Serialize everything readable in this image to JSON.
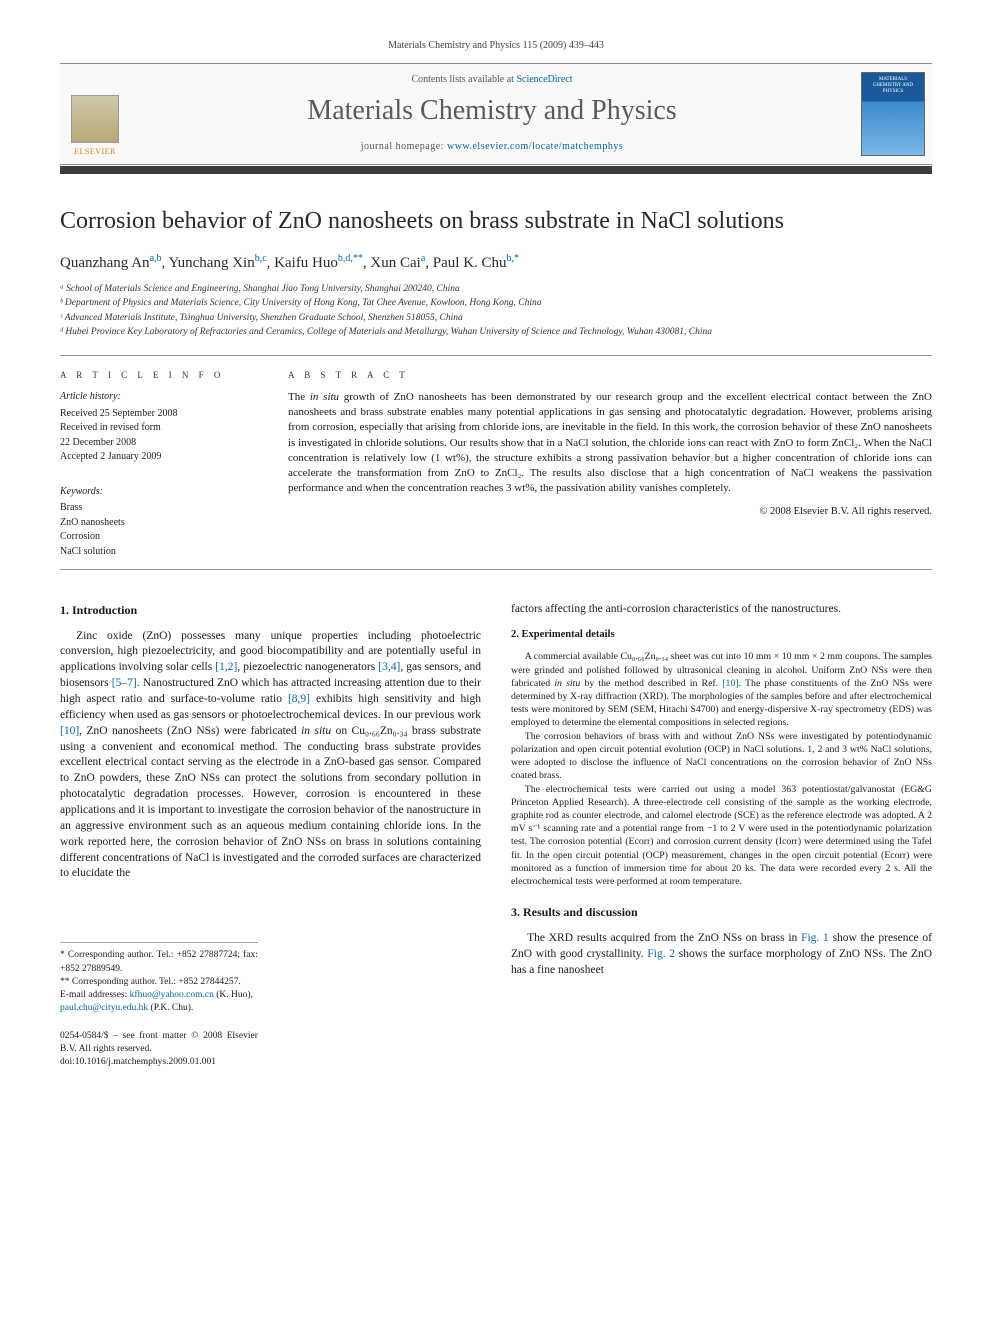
{
  "page_header": "Materials Chemistry and Physics 115 (2009) 439–443",
  "banner": {
    "contents_prefix": "Contents lists available at ",
    "contents_link": "ScienceDirect",
    "journal_title": "Materials Chemistry and Physics",
    "homepage_prefix": "journal homepage: ",
    "homepage_link": "www.elsevier.com/locate/matchemphys",
    "publisher_label": "ELSEVIER"
  },
  "title": "Corrosion behavior of ZnO nanosheets on brass substrate in NaCl solutions",
  "authors_html": "Quanzhang An<sup class=\"aff-link\">a,b</sup>, Yunchang Xin<sup class=\"aff-link\">b,c</sup>, Kaifu Huo<sup class=\"aff-link\">b,d,**</sup>, Xun Cai<sup class=\"aff-link\">a</sup>, Paul K. Chu<sup class=\"aff-link\">b,*</sup>",
  "affiliations": [
    "ᵃ School of Materials Science and Engineering, Shanghai Jiao Tong University, Shanghai 200240, China",
    "ᵇ Department of Physics and Materials Science, City University of Hong Kong, Tat Chee Avenue, Kowloon, Hong Kong, China",
    "ᶜ Advanced Materials Institute, Tsinghua University, Shenzhen Graduate School, Shenzhen 518055, China",
    "ᵈ Hubei Province Key Laboratory of Refractories and Ceramics, College of Materials and Metallurgy, Wuhan University of Science and Technology, Wuhan 430081, China"
  ],
  "info": {
    "heading": "A R T I C L E   I N F O",
    "history_label": "Article history:",
    "history": [
      "Received 25 September 2008",
      "Received in revised form",
      "22 December 2008",
      "Accepted 2 January 2009"
    ],
    "keywords_label": "Keywords:",
    "keywords": [
      "Brass",
      "ZnO nanosheets",
      "Corrosion",
      "NaCl solution"
    ]
  },
  "abstract": {
    "heading": "A B S T R A C T",
    "text": "The in situ growth of ZnO nanosheets has been demonstrated by our research group and the excellent electrical contact between the ZnO nanosheets and brass substrate enables many potential applications in gas sensing and photocatalytic degradation. However, problems arising from corrosion, especially that arising from chloride ions, are inevitable in the field. In this work, the corrosion behavior of these ZnO nanosheets is investigated in chloride solutions. Our results show that in a NaCl solution, the chloride ions can react with ZnO to form ZnCl₂. When the NaCl concentration is relatively low (1 wt%), the structure exhibits a strong passivation behavior but a higher concentration of chloride ions can accelerate the transformation from ZnO to ZnCl₂. The results also disclose that a high concentration of NaCl weakens the passivation performance and when the concentration reaches 3 wt%, the passivation ability vanishes completely.",
    "copyright": "© 2008 Elsevier B.V. All rights reserved."
  },
  "sections": {
    "intro_heading": "1.  Introduction",
    "intro_p1": "Zinc oxide (ZnO) possesses many unique properties including photoelectric conversion, high piezoelectricity, and good biocompatibility and are potentially useful in applications involving solar cells [1,2], piezoelectric nanogenerators [3,4], gas sensors, and biosensors [5–7]. Nanostructured ZnO which has attracted increasing attention due to their high aspect ratio and surface-to-volume ratio [8,9] exhibits high sensitivity and high efficiency when used as gas sensors or photoelectrochemical devices. In our previous work [10], ZnO nanosheets (ZnO NSs) were fabricated in situ on Cu₀.₆₆Zn₀.₃₄ brass substrate using a convenient and economical method. The conducting brass substrate provides excellent electrical contact serving as the electrode in a ZnO-based gas sensor. Compared to ZnO powders, these ZnO NSs can protect the solutions from secondary pollution in photocatalytic degradation processes. However, corrosion is encountered in these applications and it is important to investigate the corrosion behavior of the nanostructure in an aggressive environment such as an aqueous medium containing chloride ions. In the work reported here, the corrosion behavior of ZnO NSs on brass in solutions containing different concentrations of NaCl is investigated and the corroded surfaces are characterized to elucidate the",
    "intro_p1_cont": "factors affecting the anti-corrosion characteristics of the nanostructures.",
    "exp_heading": "2.  Experimental details",
    "exp_p1": "A commercial available Cu₀.₆₆Zn₀.₃₄ sheet was cut into 10 mm × 10 mm × 2 mm coupons. The samples were grinded and polished followed by ultrasonical cleaning in alcohol. Uniform ZnO NSs were then fabricated in situ by the method described in Ref. [10]. The phase constituents of the ZnO NSs were determined by X-ray diffraction (XRD). The morphologies of the samples before and after electrochemical tests were monitored by SEM (SEM, Hitachi S4700) and energy-dispersive X-ray spectrometry (EDS) was employed to determine the elemental compositions in selected regions.",
    "exp_p2": "The corrosion behaviors of brass with and without ZnO NSs were investigated by potentiodynamic polarization and open circuit potential evolution (OCP) in NaCl solutions. 1, 2 and 3 wt% NaCl solutions, were adopted to disclose the influence of NaCl concentrations on the corrosion behavior of ZnO NSs coated brass.",
    "exp_p3": "The electrochemical tests were carried out using a model 363 potentiostat/galvanostat (EG&G Princeton Applied Research). A three-electrode cell consisting of the sample as the working electrode, graphite rod as counter electrode, and calomel electrode (SCE) as the reference electrode was adopted. A 2 mV s⁻¹ scanning rate and a potential range from −1 to 2 V were used in the potentiodynamic polarization test. The corrosion potential (Ecorr) and corrosion current density (Icorr) were determined using the Tafel fit. In the open circuit potential (OCP) measurement, changes in the open circuit potential (Ecorr) were monitored as a function of immersion time for about 20 ks. The data were recorded every 2 s. All the electrochemical tests were performed at room temperature.",
    "results_heading": "3.  Results and discussion",
    "results_p1": "The XRD results acquired from the ZnO NSs on brass in Fig. 1 show the presence of ZnO with good crystallinity. Fig. 2 shows the surface morphology of ZnO NSs. The ZnO has a fine nanosheet"
  },
  "footnotes": {
    "star1": "* Corresponding author. Tel.: +852 27887724; fax: +852 27889549.",
    "star2": "** Corresponding author. Tel.: +852 27844257.",
    "emails_label": "E-mail addresses: ",
    "email1": "kfhuo@yahoo.com.cn",
    "email1_who": " (K. Huo),",
    "email2": "paul.chu@cityu.edu.hk",
    "email2_who": " (P.K. Chu)."
  },
  "doi": {
    "line1": "0254-0584/$ – see front matter © 2008 Elsevier B.V. All rights reserved.",
    "line2": "doi:10.1016/j.matchemphys.2009.01.001"
  },
  "colors": {
    "link": "#0066aa",
    "elsevier_orange": "#e67a17",
    "rule_dark": "#3a3a3a",
    "text": "#1a1a1a"
  }
}
